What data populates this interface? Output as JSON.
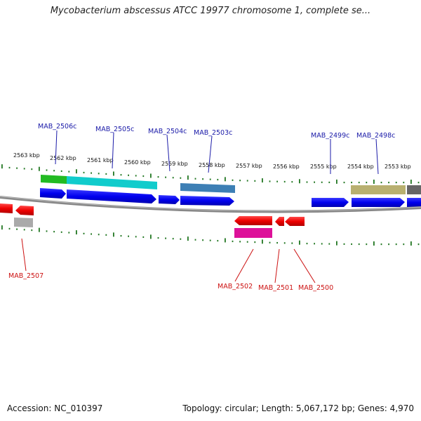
{
  "title": "Mycobacterium abscessus ATCC 19977 chromosome 1, complete se...",
  "footer": {
    "accession": "Accession: NC_010397",
    "summary": "Topology: circular; Length: 5,067,172 bp; Genes: 4,970"
  },
  "colors": {
    "backbone": "#777777",
    "tick": "#227722",
    "forward_gene": "#1010ee",
    "reverse_gene": "#ee1010",
    "top_label": "#1a1aa8",
    "bottom_label": "#cc1111"
  },
  "scale_labels": [
    "2563 kbp",
    "2562 kbp",
    "2561 kbp",
    "2560 kbp",
    "2559 kbp",
    "2558 kbp",
    "2557 kbp",
    "2556 kbp",
    "2555 kbp",
    "2554 kbp",
    "2553 kbp"
  ],
  "top_labels": [
    "MAB_2506c",
    "MAB_2505c",
    "MAB_2504c",
    "MAB_2503c",
    "MAB_2499c",
    "MAB_2498c"
  ],
  "bottom_labels": [
    "MAB_2507",
    "MAB_2502",
    "MAB_2501",
    "MAB_2500"
  ]
}
